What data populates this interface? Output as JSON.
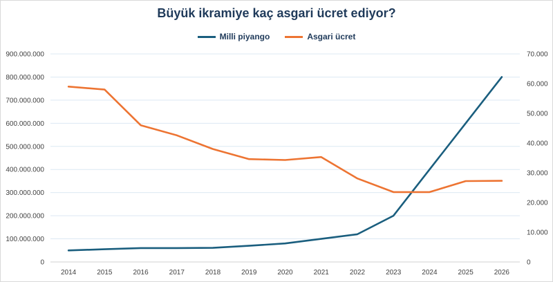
{
  "chart_data": {
    "type": "line",
    "title": "Büyük ikramiye kaç asgari ücret ediyor?",
    "categories": [
      "2014",
      "2015",
      "2016",
      "2017",
      "2018",
      "2019",
      "2020",
      "2021",
      "2022",
      "2023",
      "2024",
      "2025",
      "2026"
    ],
    "series": [
      {
        "name": "Milli piyango",
        "axis": "left",
        "color": "#1a5e7e",
        "values": [
          50000000,
          55000000,
          60000000,
          60000000,
          61000000,
          70000000,
          80000000,
          100000000,
          120000000,
          200000000,
          400000000,
          600000000,
          800000000
        ]
      },
      {
        "name": "Asgari ücret",
        "axis": "right",
        "color": "#ed7432",
        "values": [
          59000,
          58000,
          46000,
          42600,
          38000,
          34600,
          34300,
          35300,
          28100,
          23500,
          23500,
          27200,
          27300
        ]
      }
    ],
    "y_left": {
      "range": [
        0,
        900000000
      ],
      "ticks": [
        "0",
        "100.000.000",
        "200.000.000",
        "300.000.000",
        "400.000.000",
        "500.000.000",
        "600.000.000",
        "700.000.000",
        "800.000.000",
        "900.000.000"
      ]
    },
    "y_right": {
      "range": [
        0,
        70000
      ],
      "ticks": [
        "0",
        "10.000",
        "20.000",
        "30.000",
        "40.000",
        "50.000",
        "60.000",
        "70.000"
      ]
    },
    "grid": true,
    "legend_position": "top"
  }
}
